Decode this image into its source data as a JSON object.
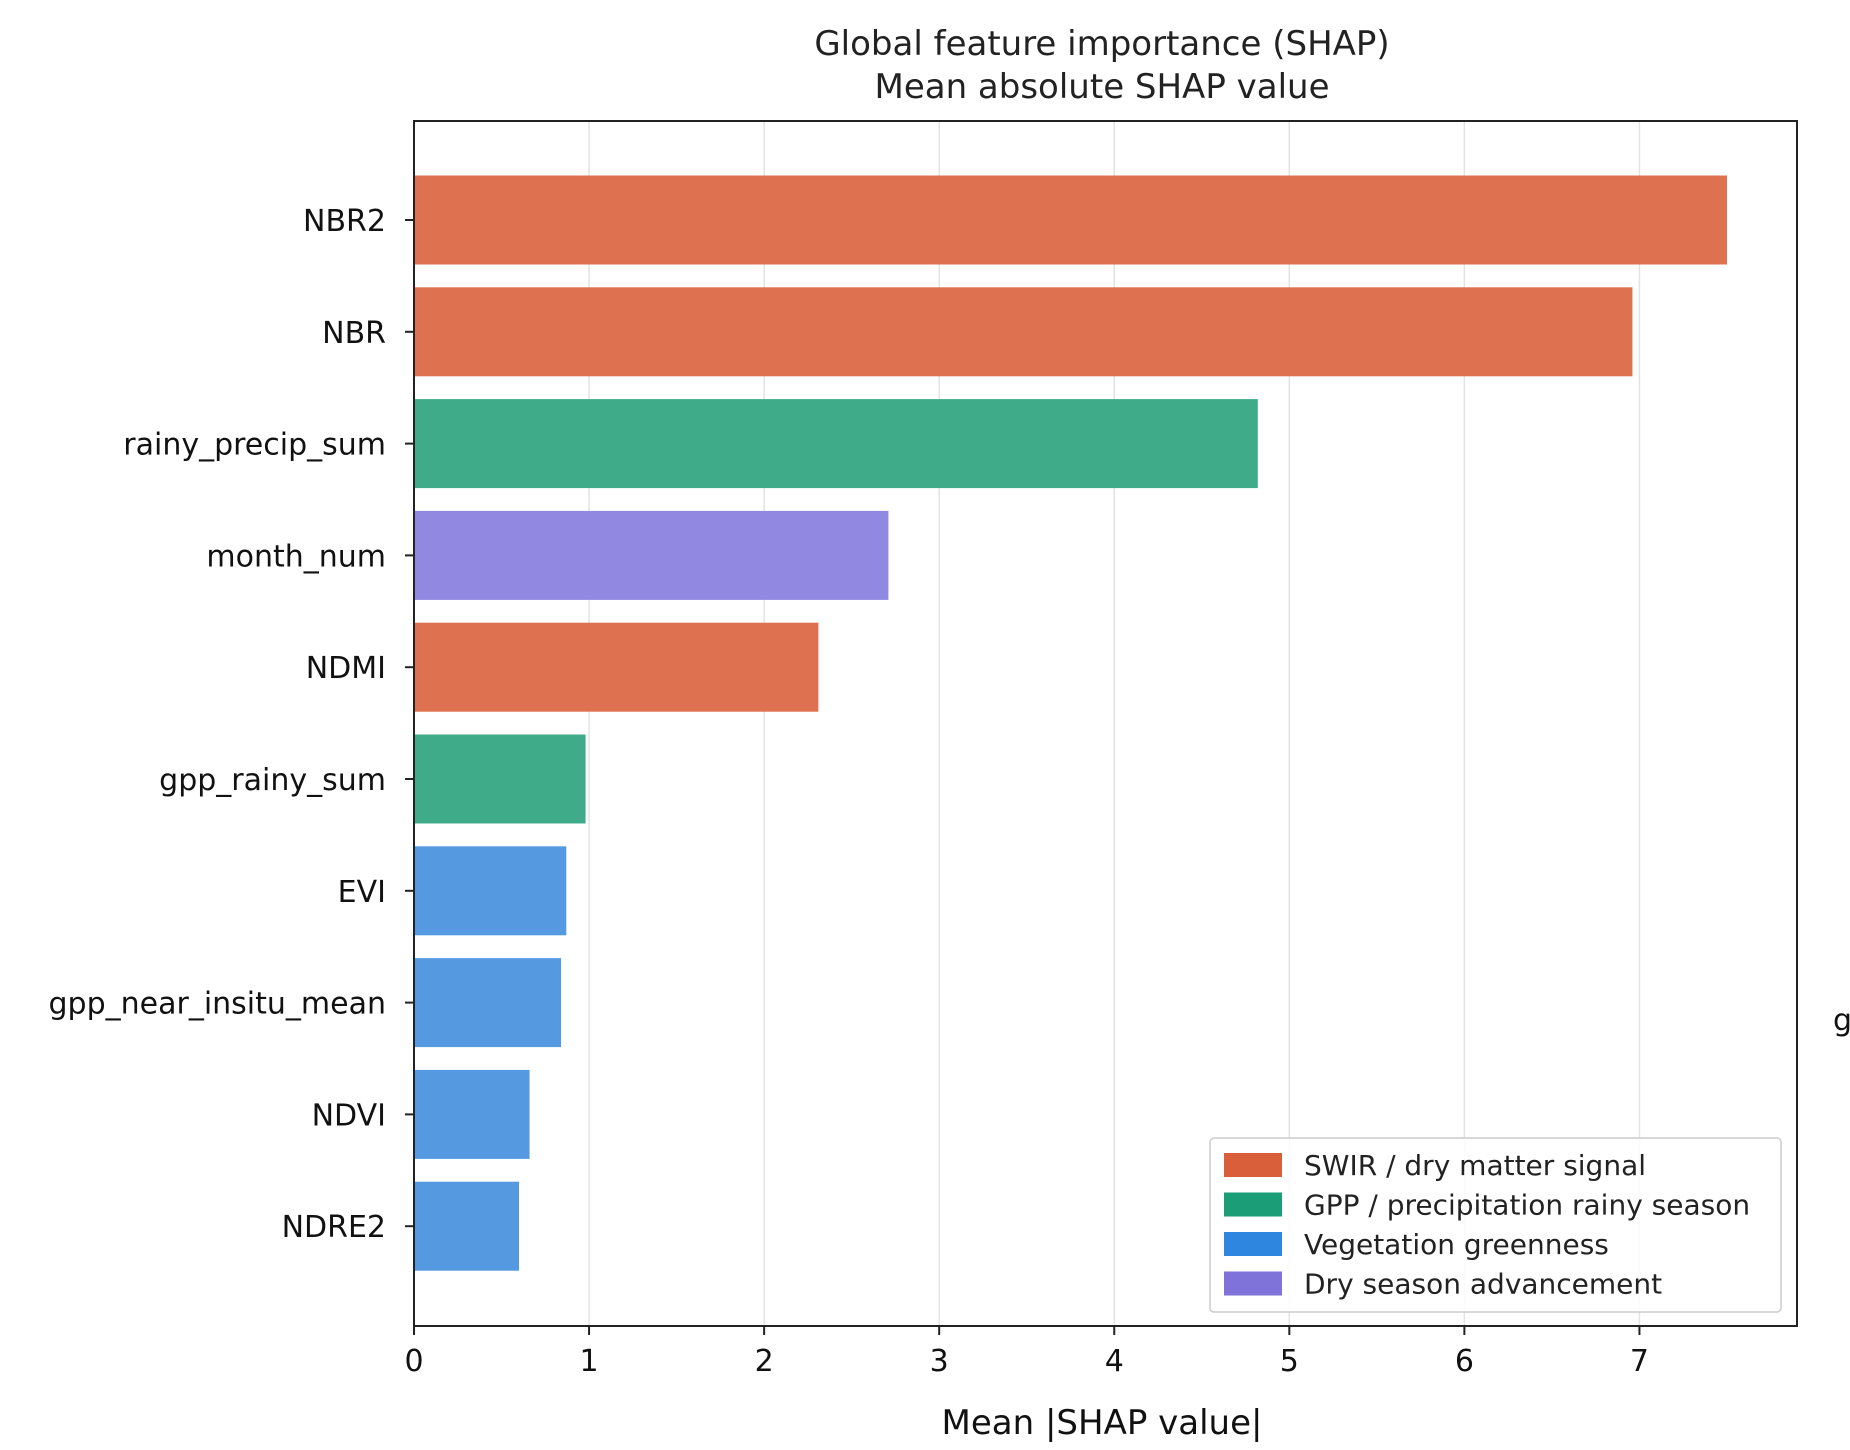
{
  "chart_data": {
    "type": "bar",
    "orientation": "horizontal",
    "title": "Global feature importance (SHAP)",
    "subtitle": "Mean absolute SHAP value",
    "xlabel": "Mean |SHAP value|",
    "ylabel": "",
    "xlim": [
      0,
      7.9
    ],
    "xticks": [
      0,
      1,
      2,
      3,
      4,
      5,
      6,
      7
    ],
    "grid": "vertical",
    "categories": [
      "NBR2",
      "NBR",
      "rainy_precip_sum",
      "month_num",
      "NDMI",
      "gpp_rainy_sum",
      "EVI",
      "gpp_near_insitu_mean",
      "NDVI",
      "NDRE2"
    ],
    "values": [
      7.5,
      6.96,
      4.82,
      2.71,
      2.31,
      0.98,
      0.87,
      0.84,
      0.66,
      0.6
    ],
    "bar_groups": [
      "swir",
      "swir",
      "gpp",
      "dry",
      "swir",
      "gpp",
      "veg",
      "veg",
      "veg",
      "veg"
    ],
    "legend": {
      "placement": "lower-right",
      "entries": [
        {
          "key": "swir",
          "label": "SWIR / dry matter signal",
          "color": "#d95f3b"
        },
        {
          "key": "gpp",
          "label": "GPP / precipitation rainy season",
          "color": "#1b9e77"
        },
        {
          "key": "veg",
          "label": "Vegetation greenness",
          "color": "#2e86de"
        },
        {
          "key": "dry",
          "label": "Dry season advancement",
          "color": "#7f72d8"
        }
      ]
    },
    "bar_colors": {
      "swir": "#de7150",
      "gpp": "#3fab88",
      "veg": "#559ae1",
      "dry": "#9189e1"
    },
    "edge_fragment": "g"
  }
}
